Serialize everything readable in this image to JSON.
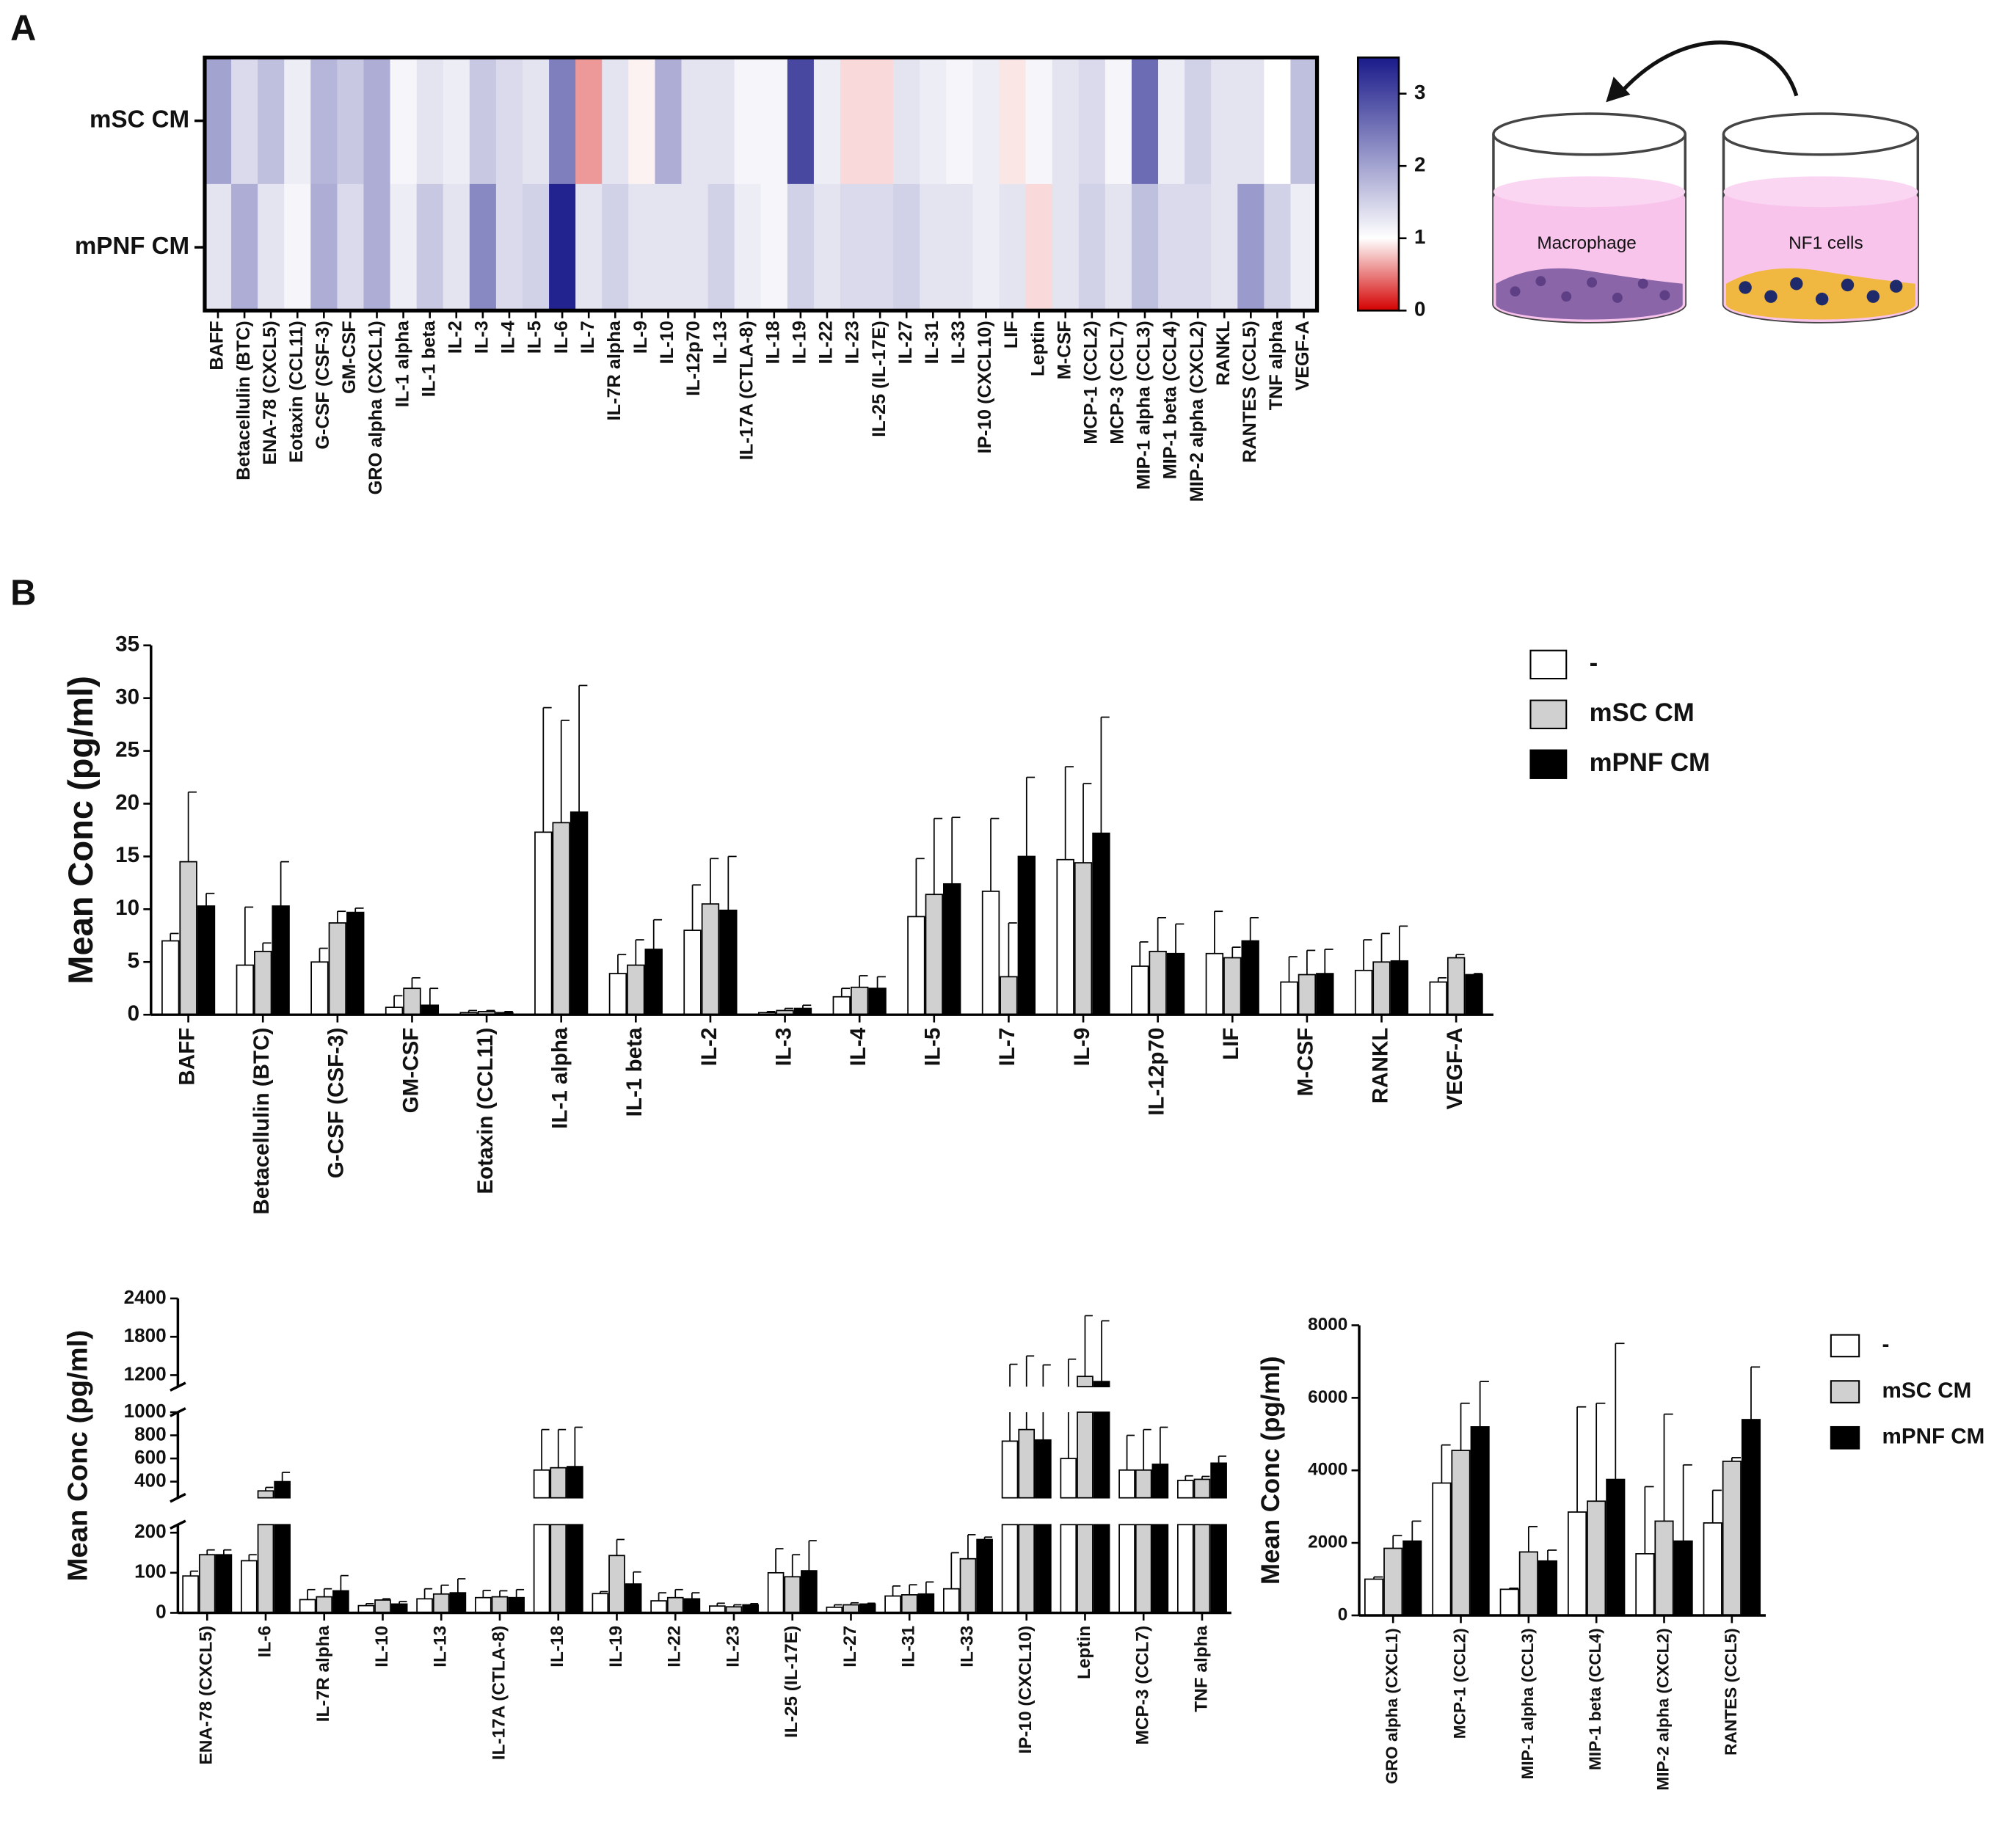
{
  "panels": [
    "A",
    "B"
  ],
  "diagram": {
    "labels": [
      "Macrophage",
      "NF1 cells"
    ]
  },
  "chart_data": [
    {
      "type": "heatmap",
      "categories": [
        "BAFF",
        "Betacellulin (BTC)",
        "ENA-78 (CXCL5)",
        "Eotaxin (CCL11)",
        "G-CSF (CSF-3)",
        "GM-CSF",
        "GRO alpha (CXCL1)",
        "IL-1 alpha",
        "IL-1 beta",
        "IL-2",
        "IL-3",
        "IL-4",
        "IL-5",
        "IL-6",
        "IL-7",
        "IL-7R alpha",
        "IL-9",
        "IL-10",
        "IL-12p70",
        "IL-13",
        "IL-17A (CTLA-8)",
        "IL-18",
        "IL-19",
        "IL-22",
        "IL-23",
        "IL-25 (IL-17E)",
        "IL-27",
        "IL-31",
        "IL-33",
        "IP-10 (CXCL10)",
        "LIF",
        "Leptin",
        "M-CSF",
        "MCP-1 (CCL2)",
        "MCP-3 (CCL7)",
        "MIP-1 alpha (CCL3)",
        "MIP-1 beta (CCL4)",
        "MIP-2 alpha (CXCL2)",
        "RANKL",
        "RANTES (CCL5)",
        "TNF alpha",
        "VEGF-A"
      ],
      "rows": [
        "mSC CM",
        "mPNF CM"
      ],
      "values": [
        [
          2.0,
          1.4,
          1.7,
          1.2,
          1.8,
          1.6,
          1.9,
          1.1,
          1.3,
          1.2,
          1.6,
          1.4,
          1.3,
          2.4,
          0.6,
          1.3,
          0.95,
          1.9,
          1.3,
          1.3,
          1.1,
          1.1,
          3.0,
          1.2,
          0.85,
          0.85,
          1.3,
          1.2,
          1.1,
          1.2,
          0.9,
          1.1,
          1.3,
          1.4,
          1.1,
          2.6,
          1.2,
          1.5,
          1.3,
          1.3,
          1.0,
          1.7
        ],
        [
          1.3,
          1.9,
          1.3,
          1.1,
          1.9,
          1.4,
          1.9,
          1.2,
          1.6,
          1.3,
          2.3,
          1.4,
          1.5,
          3.4,
          1.3,
          1.5,
          1.3,
          1.3,
          1.3,
          1.5,
          1.2,
          1.1,
          1.5,
          1.3,
          1.4,
          1.4,
          1.5,
          1.3,
          1.3,
          1.2,
          1.3,
          0.85,
          1.3,
          1.5,
          1.3,
          1.7,
          1.4,
          1.4,
          1.3,
          2.1,
          1.5,
          1.2
        ]
      ],
      "colorscale": [
        [
          0,
          "#d40000"
        ],
        [
          1,
          "#ffffff"
        ],
        [
          3.5,
          "#1a1a8a"
        ]
      ],
      "zlim": [
        0,
        3.5
      ],
      "zticks": [
        0,
        1,
        2,
        3
      ]
    },
    {
      "type": "bar",
      "ylabel": "Mean Conc (pg/ml)",
      "categories": [
        "BAFF",
        "Betacellulin (BTC)",
        "G-CSF (CSF-3)",
        "GM-CSF",
        "Eotaxin (CCL11)",
        "IL-1 alpha",
        "IL-1 beta",
        "IL-2",
        "IL-3",
        "IL-4",
        "IL-5",
        "IL-7",
        "IL-9",
        "IL-12p70",
        "LIF",
        "M-CSF",
        "RANKL",
        "VEGF-A"
      ],
      "series": [
        {
          "name": "-",
          "color": "#ffffff",
          "values": [
            7.0,
            4.7,
            5.0,
            0.7,
            0.2,
            17.3,
            3.9,
            8.0,
            0.2,
            1.7,
            9.3,
            11.7,
            14.7,
            4.6,
            5.8,
            3.1,
            4.2,
            3.1
          ],
          "errors": [
            0.7,
            5.5,
            1.3,
            1.1,
            0.2,
            11.8,
            1.8,
            4.3,
            0.1,
            0.8,
            5.5,
            6.9,
            8.8,
            2.3,
            4.0,
            2.4,
            2.9,
            0.4
          ]
        },
        {
          "name": "mSC CM",
          "color": "#d0d0d0",
          "values": [
            14.5,
            6.0,
            8.7,
            2.5,
            0.3,
            18.2,
            4.7,
            10.5,
            0.4,
            2.6,
            11.4,
            3.6,
            14.4,
            6.0,
            5.4,
            3.8,
            5.0,
            5.4
          ],
          "errors": [
            6.6,
            0.8,
            1.1,
            1.0,
            0.1,
            9.7,
            2.4,
            4.3,
            0.2,
            1.1,
            7.2,
            5.1,
            7.5,
            3.2,
            1.0,
            2.3,
            2.7,
            0.3
          ]
        },
        {
          "name": "mPNF CM",
          "color": "#000000",
          "values": [
            10.3,
            10.3,
            9.7,
            0.9,
            0.2,
            19.2,
            6.2,
            9.9,
            0.6,
            2.5,
            12.4,
            15.0,
            17.2,
            5.8,
            7.0,
            3.9,
            5.1,
            3.8
          ],
          "errors": [
            1.2,
            4.2,
            0.4,
            1.6,
            0.1,
            12.0,
            2.8,
            5.1,
            0.3,
            1.1,
            6.3,
            7.5,
            11.0,
            2.8,
            2.2,
            2.3,
            3.3,
            0.1
          ]
        }
      ],
      "ylim": [
        0,
        35
      ],
      "yticks": [
        0,
        5,
        10,
        15,
        20,
        25,
        30,
        35
      ],
      "legend": "right"
    },
    {
      "type": "broken_bar",
      "ylabel": "Mean Conc (pg/ml)",
      "categories": [
        "ENA-78 (CXCL5)",
        "IL-6",
        "IL-7R alpha",
        "IL-10",
        "IL-13",
        "IL-17A (CTLA-8)",
        "IL-18",
        "IL-19",
        "IL-22",
        "IL-23",
        "IL-25 (IL-17E)",
        "IL-27",
        "IL-31",
        "IL-33",
        "IP-10 (CXCL10)",
        "Leptin",
        "MCP-3 (CCL7)",
        "TNF alpha"
      ],
      "series": [
        {
          "color": "#ffffff",
          "values": [
            92,
            130,
            33,
            18,
            35,
            38,
            500,
            48,
            30,
            17,
            100,
            14,
            42,
            60,
            750,
            600,
            500,
            410
          ],
          "errors": [
            12,
            15,
            25,
            5,
            25,
            18,
            350,
            5,
            20,
            7,
            60,
            6,
            25,
            90,
            620,
            850,
            300,
            40
          ]
        },
        {
          "color": "#d0d0d0",
          "values": [
            145,
            320,
            40,
            32,
            47,
            40,
            520,
            143,
            38,
            15,
            90,
            20,
            45,
            135,
            850,
            1180,
            500,
            420
          ],
          "errors": [
            12,
            30,
            20,
            3,
            22,
            15,
            330,
            40,
            20,
            5,
            55,
            5,
            25,
            60,
            650,
            950,
            350,
            25
          ]
        },
        {
          "color": "#000000",
          "values": [
            145,
            400,
            55,
            22,
            50,
            38,
            530,
            72,
            35,
            20,
            105,
            22,
            47,
            183,
            760,
            1100,
            550,
            560
          ],
          "errors": [
            12,
            80,
            38,
            6,
            35,
            20,
            340,
            30,
            15,
            3,
            75,
            2,
            30,
            6,
            600,
            950,
            320,
            60
          ]
        }
      ],
      "ylim_segments": [
        [
          0,
          220
        ],
        [
          260,
          1000
        ],
        [
          1020,
          2400
        ]
      ],
      "yticks": [
        0,
        100,
        200,
        400,
        600,
        800,
        1000,
        1200,
        1800,
        2400
      ]
    },
    {
      "type": "bar",
      "ylabel": "Mean Conc (pg/ml)",
      "categories": [
        "GRO alpha (CXCL1)",
        "MCP-1 (CCL2)",
        "MIP-1 alpha (CCL3)",
        "MIP-1 beta (CCL4)",
        "MIP-2 alpha (CXCL2)",
        "RANTES (CCL5)"
      ],
      "series": [
        {
          "name": "-",
          "color": "#ffffff",
          "values": [
            1000,
            3650,
            720,
            2850,
            1700,
            2550
          ],
          "errors": [
            60,
            1050,
            30,
            2900,
            1850,
            900
          ]
        },
        {
          "name": "mSC CM",
          "color": "#d0d0d0",
          "values": [
            1850,
            4550,
            1750,
            3150,
            2600,
            4250
          ],
          "errors": [
            350,
            1300,
            700,
            2700,
            2950,
            100
          ]
        },
        {
          "name": "mPNF CM",
          "color": "#000000",
          "values": [
            2050,
            5200,
            1500,
            3750,
            2050,
            5400
          ],
          "errors": [
            550,
            1250,
            300,
            3750,
            2100,
            1450
          ]
        }
      ],
      "ylim": [
        0,
        8000
      ],
      "yticks": [
        0,
        2000,
        4000,
        6000,
        8000
      ],
      "legend": "right"
    }
  ]
}
